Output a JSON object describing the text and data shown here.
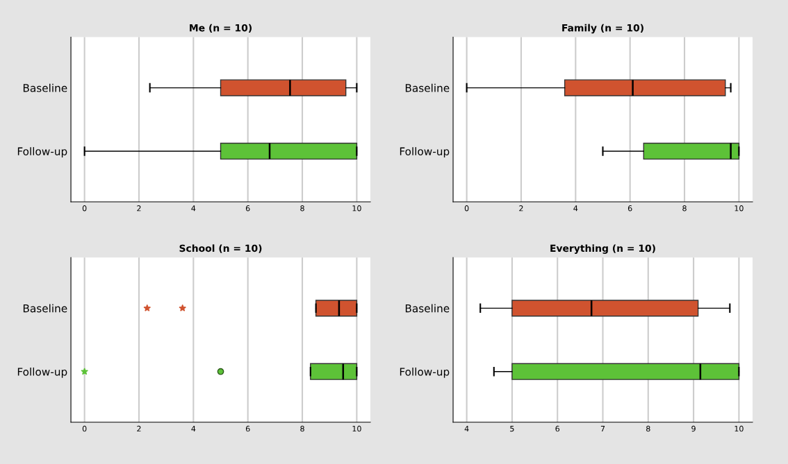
{
  "chart_data": [
    {
      "type": "box",
      "title": "Me (n = 10)",
      "orientation": "horizontal",
      "categories": [
        "Baseline",
        "Follow-up"
      ],
      "colors": [
        "#d0532f",
        "#5dc238"
      ],
      "xlim": [
        -0.5,
        10.5
      ],
      "xticks": [
        0,
        2,
        4,
        6,
        8,
        10
      ],
      "grid": "x",
      "boxes": [
        {
          "low": 2.4,
          "q1": 5,
          "median": 7.55,
          "q3": 9.6,
          "high": 10
        },
        {
          "low": 0,
          "q1": 5,
          "median": 6.8,
          "q3": 10,
          "high": 10
        }
      ]
    },
    {
      "type": "box",
      "title": "Family (n = 10)",
      "orientation": "horizontal",
      "categories": [
        "Baseline",
        "Follow-up"
      ],
      "colors": [
        "#d0532f",
        "#5dc238"
      ],
      "xlim": [
        -0.5,
        10.5
      ],
      "xticks": [
        0,
        2,
        4,
        6,
        8,
        10
      ],
      "grid": "x",
      "boxes": [
        {
          "low": 0,
          "q1": 3.6,
          "median": 6.1,
          "q3": 9.5,
          "high": 9.7
        },
        {
          "low": 5,
          "q1": 6.5,
          "median": 9.7,
          "q3": 10,
          "high": 10
        }
      ]
    },
    {
      "type": "box",
      "title": "School (n = 10)",
      "orientation": "horizontal",
      "categories": [
        "Baseline",
        "Follow-up"
      ],
      "colors": [
        "#d0532f",
        "#5dc238"
      ],
      "xlim": [
        -0.5,
        10.5
      ],
      "xticks": [
        0,
        2,
        4,
        6,
        8,
        10
      ],
      "grid": "x",
      "boxes": [
        {
          "low": 8.5,
          "q1": 8.5,
          "median": 9.35,
          "q3": 10,
          "high": 10,
          "outliers": [
            2.3,
            3.6
          ]
        },
        {
          "low": 8.3,
          "q1": 8.3,
          "median": 9.5,
          "q3": 10,
          "high": 10,
          "outliers": [
            0,
            5
          ]
        }
      ]
    },
    {
      "type": "box",
      "title": "Everything (n = 10)",
      "orientation": "horizontal",
      "categories": [
        "Baseline",
        "Follow-up"
      ],
      "colors": [
        "#d0532f",
        "#5dc238"
      ],
      "xlim": [
        3.7,
        10.3
      ],
      "xticks": [
        4,
        5,
        6,
        7,
        8,
        9,
        10
      ],
      "grid": "x",
      "boxes": [
        {
          "low": 4.3,
          "q1": 5,
          "median": 6.75,
          "q3": 9.1,
          "high": 9.8
        },
        {
          "low": 4.6,
          "q1": 5,
          "median": 9.15,
          "q3": 10,
          "high": 10
        }
      ]
    }
  ]
}
